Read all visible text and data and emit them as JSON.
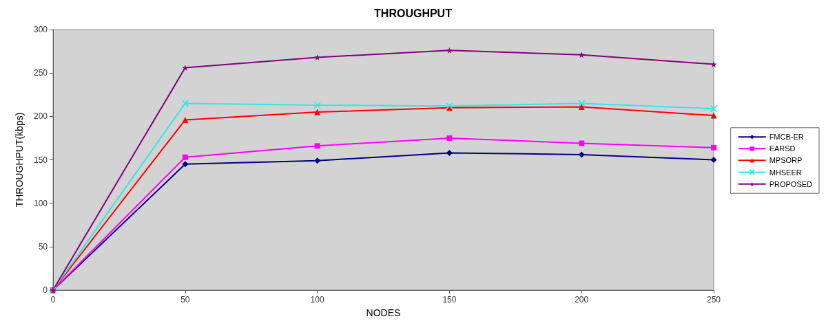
{
  "chart_data": {
    "type": "line",
    "title": "THROUGHPUT",
    "xlabel": "NODES",
    "ylabel": "THROUGHPUT(kbps)",
    "x": [
      0,
      50,
      100,
      150,
      200,
      250
    ],
    "xlim": [
      0,
      250
    ],
    "xticks": [
      0,
      50,
      100,
      150,
      200,
      250
    ],
    "ylim": [
      0,
      300
    ],
    "yticks": [
      0,
      50,
      100,
      150,
      200,
      250,
      300
    ],
    "grid": false,
    "legend": "right",
    "series": [
      {
        "name": "FMCB-ER",
        "color": "#000080",
        "marker": "diamond",
        "values": [
          0,
          145,
          149,
          158,
          156,
          150
        ]
      },
      {
        "name": "EARSD",
        "color": "#ff00ff",
        "marker": "square",
        "values": [
          0,
          153,
          166,
          175,
          169,
          164
        ]
      },
      {
        "name": "MPSORP",
        "color": "#ff0000",
        "marker": "triangle",
        "values": [
          0,
          196,
          205,
          210,
          211,
          201
        ]
      },
      {
        "name": "MHSEER",
        "color": "#33e6e6",
        "marker": "cross",
        "values": [
          0,
          215,
          213,
          212,
          215,
          209
        ]
      },
      {
        "name": "PROPOSED",
        "color": "#800080",
        "marker": "star",
        "values": [
          0,
          256,
          268,
          276,
          271,
          260
        ]
      }
    ]
  }
}
